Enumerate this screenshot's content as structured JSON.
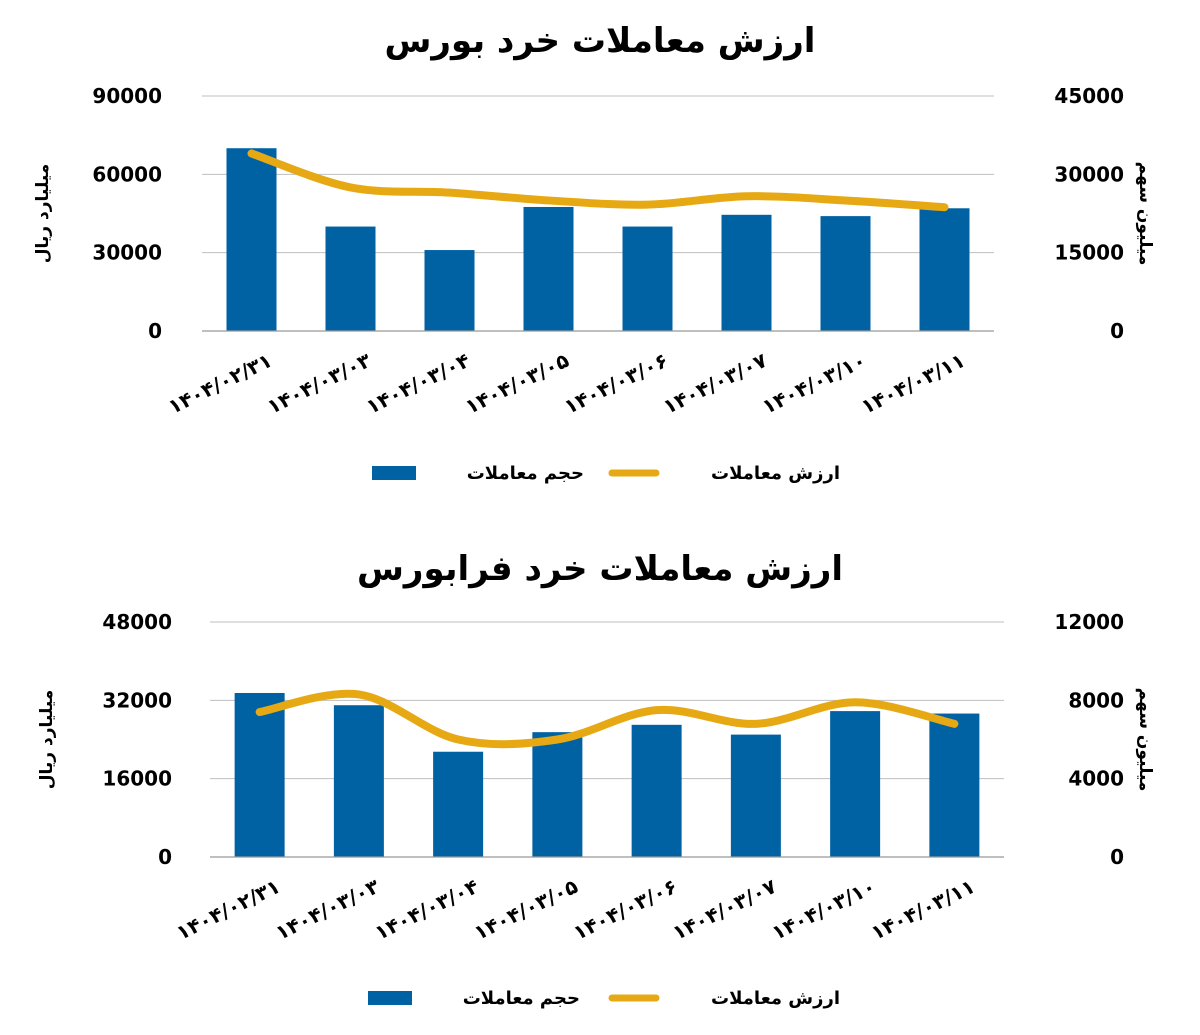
{
  "colors": {
    "bar": "#0062a3",
    "line": "#e6a914",
    "grid": "#bfbfbf"
  },
  "chart_data": [
    {
      "type": "bar",
      "title": "ارزش معاملات خرد بورس",
      "ylabel": "میلیارد ریال",
      "y2label": "میلیون سهم",
      "ylim": [
        0,
        90000
      ],
      "y2lim": [
        0,
        45000
      ],
      "yticks": [
        "0",
        "30000",
        "60000",
        "90000"
      ],
      "y2ticks": [
        "0",
        "15000",
        "30000",
        "45000"
      ],
      "categories": [
        "1404/02/31",
        "1404/03/03",
        "1404/03/04",
        "1404/03/05",
        "1404/03/06",
        "1404/03/07",
        "1404/03/10",
        "1404/03/11"
      ],
      "category_labels": [
        "۱۴۰۴/۰۲/۳۱",
        "۱۴۰۴/۰۳/۰۳",
        "۱۴۰۴/۰۳/۰۴",
        "۱۴۰۴/۰۳/۰۵",
        "۱۴۰۴/۰۳/۰۶",
        "۱۴۰۴/۰۳/۰۷",
        "۱۴۰۴/۰۳/۱۰",
        "۱۴۰۴/۰۳/۱۱"
      ],
      "series": [
        {
          "name": "حجم معاملات",
          "kind": "bar",
          "axis": "left",
          "values": [
            70000,
            40000,
            31000,
            47500,
            40000,
            44500,
            44000,
            47000
          ]
        },
        {
          "name": "ارزش معاملات",
          "kind": "line",
          "axis": "right",
          "values": [
            34000,
            27500,
            26500,
            25000,
            24200,
            25800,
            25000,
            23700
          ]
        }
      ],
      "legend_position": "bottom"
    },
    {
      "type": "bar",
      "title": "ارزش معاملات خرد فرابورس",
      "ylabel": "میلیارد ریال",
      "y2label": "میلیون سهم",
      "ylim": [
        0,
        48000
      ],
      "y2lim": [
        0,
        12000
      ],
      "yticks": [
        "0",
        "16000",
        "32000",
        "48000"
      ],
      "y2ticks": [
        "0",
        "4000",
        "8000",
        "12000"
      ],
      "categories": [
        "1404/02/31",
        "1404/03/03",
        "1404/03/04",
        "1404/03/05",
        "1404/03/06",
        "1404/03/07",
        "1404/03/10",
        "1404/03/11"
      ],
      "category_labels": [
        "۱۴۰۴/۰۲/۳۱",
        "۱۴۰۴/۰۳/۰۳",
        "۱۴۰۴/۰۳/۰۴",
        "۱۴۰۴/۰۳/۰۵",
        "۱۴۰۴/۰۳/۰۶",
        "۱۴۰۴/۰۳/۰۷",
        "۱۴۰۴/۰۳/۱۰",
        "۱۴۰۴/۰۳/۱۱"
      ],
      "series": [
        {
          "name": "حجم معاملات",
          "kind": "bar",
          "axis": "left",
          "values": [
            33500,
            31000,
            21500,
            25500,
            27000,
            25000,
            29800,
            29300
          ]
        },
        {
          "name": "ارزش معاملات",
          "kind": "line",
          "axis": "right",
          "values": [
            7400,
            8300,
            6000,
            6000,
            7500,
            6800,
            7900,
            6800
          ]
        }
      ],
      "legend_position": "bottom"
    }
  ]
}
